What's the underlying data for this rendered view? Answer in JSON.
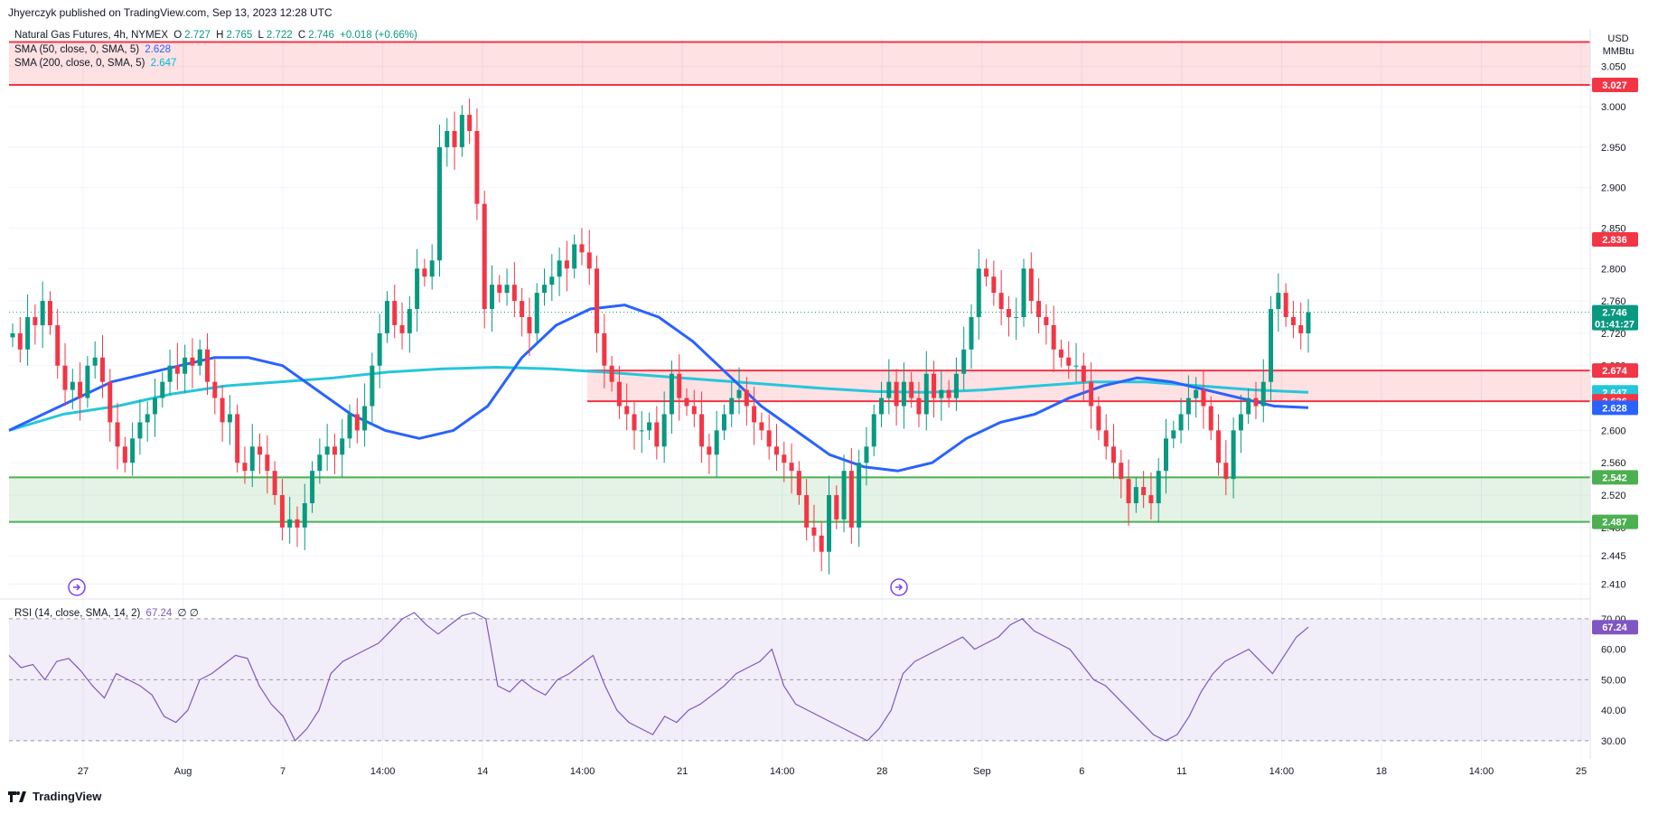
{
  "header": {
    "published": "Jhyerczyk published on TradingView.com, Sep 13, 2023 12:28 UTC"
  },
  "legend": {
    "main": {
      "symbol": "Natural Gas Futures, 4h, NYMEX",
      "o_label": "O",
      "o_value": "2.727",
      "h_label": "H",
      "h_value": "2.765",
      "l_label": "L",
      "l_value": "2.722",
      "c_label": "C",
      "c_value": "2.746",
      "change": "+0.018 (+0.66%)"
    },
    "sma50": {
      "label": "SMA (50, close, 0, SMA, 5)",
      "value": "2.628"
    },
    "sma200": {
      "label": "SMA (200, close, 0, SMA, 5)",
      "value": "2.647"
    },
    "rsi": {
      "label": "RSI (14, close, SMA, 14, 2)",
      "value": "67.24",
      "extra": "∅ ∅"
    }
  },
  "unit": {
    "line1": "USD",
    "line2": "MMBtu"
  },
  "footer": {
    "brand": "TradingView"
  },
  "chart_data": {
    "type": "candlestick",
    "timeframe": "4h",
    "y_axis_ticks": [
      "3.050",
      "3.000",
      "2.950",
      "2.900",
      "2.850",
      "2.800",
      "2.760",
      "2.720",
      "2.680",
      "2.600",
      "2.560",
      "2.520",
      "2.480",
      "2.445",
      "2.410"
    ],
    "x_axis_ticks": [
      "27",
      "Aug",
      "7",
      "14:00",
      "14",
      "14:00",
      "21",
      "14:00",
      "28",
      "Sep",
      "6",
      "11",
      "14:00",
      "18",
      "14:00",
      "25"
    ],
    "rsi_axis_ticks": [
      "70.00",
      "60.00",
      "50.00",
      "40.00",
      "30.00"
    ],
    "price_badges": [
      {
        "label": "3.027",
        "color": "#f23645"
      },
      {
        "label": "2.836",
        "color": "#f23645"
      },
      {
        "label": "2.746",
        "sub": "01:41:27",
        "color": "#089981"
      },
      {
        "label": "2.674",
        "color": "#f23645"
      },
      {
        "label": "2.647",
        "color": "#26c6da"
      },
      {
        "label": "2.636",
        "color": "#f23645"
      },
      {
        "label": "2.628",
        "color": "#2962ff"
      },
      {
        "label": "2.542",
        "color": "#4caf50"
      },
      {
        "label": "2.487",
        "color": "#4caf50"
      }
    ],
    "rsi_badge": {
      "label": "67.24",
      "color": "#7e57c2"
    },
    "zones": [
      {
        "name": "resistance",
        "from": 3.027,
        "to": 3.08,
        "color": "#f23645"
      },
      {
        "name": "mid",
        "from": 2.636,
        "to": 2.674,
        "color": "#f23645"
      },
      {
        "name": "support",
        "from": 2.487,
        "to": 2.542,
        "color": "#4caf50"
      }
    ],
    "last_price": 2.746,
    "closes": [
      2.72,
      2.7,
      2.74,
      2.73,
      2.76,
      2.73,
      2.68,
      2.65,
      2.66,
      2.64,
      2.68,
      2.69,
      2.66,
      2.61,
      2.58,
      2.56,
      2.59,
      2.61,
      2.62,
      2.64,
      2.66,
      2.68,
      2.67,
      2.69,
      2.68,
      2.7,
      2.66,
      2.64,
      2.61,
      2.62,
      2.56,
      2.55,
      2.58,
      2.57,
      2.55,
      2.52,
      2.48,
      2.49,
      2.48,
      2.51,
      2.55,
      2.57,
      2.58,
      2.57,
      2.59,
      2.62,
      2.6,
      2.63,
      2.68,
      2.72,
      2.76,
      2.73,
      2.72,
      2.75,
      2.8,
      2.79,
      2.81,
      2.95,
      2.97,
      2.95,
      2.99,
      2.97,
      2.88,
      2.75,
      2.78,
      2.77,
      2.78,
      2.76,
      2.74,
      2.72,
      2.77,
      2.78,
      2.79,
      2.81,
      2.8,
      2.83,
      2.82,
      2.8,
      2.72,
      2.68,
      2.66,
      2.63,
      2.62,
      2.6,
      2.6,
      2.61,
      2.58,
      2.62,
      2.67,
      2.64,
      2.63,
      2.62,
      2.58,
      2.57,
      2.6,
      2.62,
      2.64,
      2.65,
      2.63,
      2.61,
      2.6,
      2.58,
      2.57,
      2.56,
      2.55,
      2.52,
      2.48,
      2.47,
      2.45,
      2.52,
      2.49,
      2.55,
      2.48,
      2.56,
      2.58,
      2.62,
      2.64,
      2.66,
      2.63,
      2.66,
      2.64,
      2.62,
      2.67,
      2.64,
      2.65,
      2.64,
      2.67,
      2.7,
      2.74,
      2.8,
      2.79,
      2.77,
      2.75,
      2.74,
      2.74,
      2.8,
      2.76,
      2.74,
      2.73,
      2.7,
      2.69,
      2.68,
      2.68,
      2.66,
      2.63,
      2.6,
      2.58,
      2.56,
      2.54,
      2.51,
      2.53,
      2.52,
      2.51,
      2.55,
      2.59,
      2.6,
      2.62,
      2.64,
      2.65,
      2.63,
      2.6,
      2.56,
      2.54,
      2.6,
      2.62,
      2.64,
      2.63,
      2.66,
      2.75,
      2.77,
      2.74,
      2.73,
      2.72,
      2.746
    ],
    "sma50": [
      2.6,
      2.62,
      2.64,
      2.66,
      2.67,
      2.68,
      2.69,
      2.69,
      2.68,
      2.65,
      2.62,
      2.6,
      2.59,
      2.6,
      2.63,
      2.69,
      2.73,
      2.75,
      2.755,
      2.74,
      2.71,
      2.67,
      2.63,
      2.6,
      2.57,
      2.555,
      2.55,
      2.56,
      2.59,
      2.61,
      2.62,
      2.64,
      2.655,
      2.665,
      2.66,
      2.65,
      2.64,
      2.63,
      2.628
    ],
    "sma200": [
      2.6,
      2.62,
      2.63,
      2.645,
      2.655,
      2.66,
      2.665,
      2.672,
      2.676,
      2.678,
      2.676,
      2.672,
      2.667,
      2.662,
      2.657,
      2.652,
      2.648,
      2.647,
      2.65,
      2.655,
      2.66,
      2.66,
      2.655,
      2.65,
      2.647
    ],
    "rsi": [
      58,
      54,
      55,
      50,
      56,
      57,
      53,
      48,
      44,
      52,
      50,
      48,
      45,
      38,
      36,
      40,
      50,
      52,
      55,
      58,
      57,
      48,
      42,
      38,
      30,
      34,
      40,
      52,
      56,
      58,
      60,
      62,
      66,
      70,
      72,
      68,
      65,
      68,
      71,
      72,
      70,
      48,
      46,
      50,
      47,
      45,
      50,
      52,
      55,
      58,
      48,
      40,
      36,
      34,
      32,
      38,
      36,
      40,
      42,
      45,
      48,
      52,
      54,
      56,
      60,
      48,
      42,
      40,
      38,
      36,
      34,
      32,
      30,
      34,
      40,
      52,
      56,
      58,
      60,
      62,
      64,
      60,
      62,
      64,
      68,
      70,
      66,
      64,
      62,
      60,
      55,
      50,
      48,
      44,
      40,
      36,
      32,
      30,
      32,
      38,
      46,
      52,
      56,
      58,
      60,
      56,
      52,
      58,
      64,
      67.24
    ]
  }
}
